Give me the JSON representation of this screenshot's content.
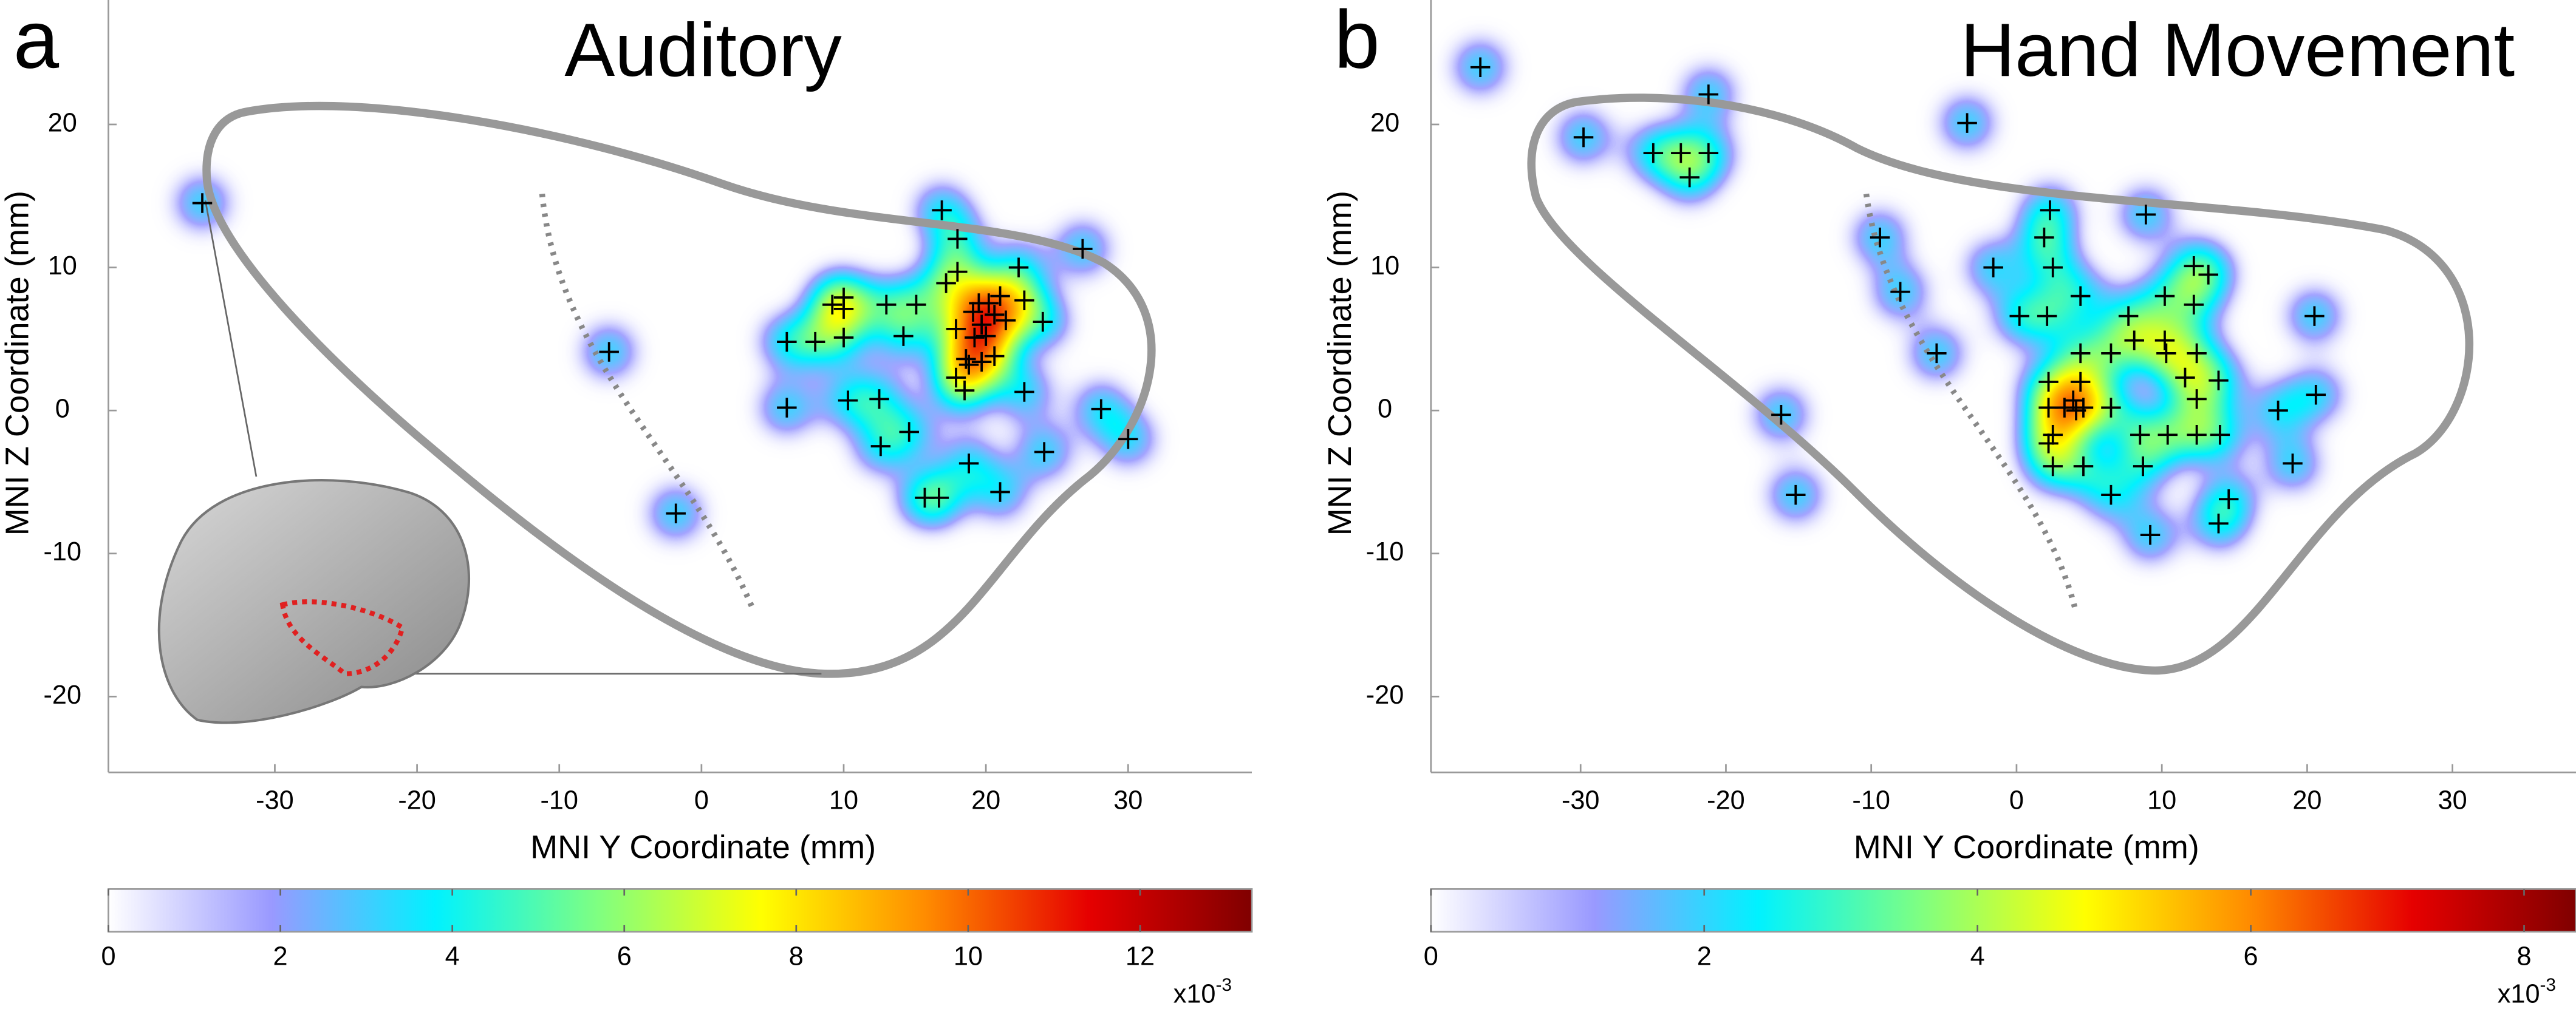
{
  "chart_data": [
    {
      "type": "scatter",
      "panel_label": "a",
      "title": "Auditory",
      "x_label": "MNI Y Coordinate (mm)",
      "y_label": "MNI Z Coordinate (mm)",
      "color": "#000000",
      "x": [
        -35.1,
        -6.5,
        -1.8,
        16.9,
        6.0,
        8.0,
        6.0,
        9.2,
        10.0,
        10.0,
        10.0,
        10.3,
        12.5,
        12.6,
        13.0,
        14.2,
        14.6,
        15.1,
        15.7,
        16.7,
        17.2,
        18.0,
        18.0,
        17.9,
        17.9,
        18.5,
        18.6,
        18.8,
        19.1,
        19.5,
        19.7,
        20.0,
        20.2,
        20.6,
        21.0,
        19.2,
        18.8,
        19.7,
        20.6,
        21.4,
        22.3,
        22.7,
        22.7,
        21.0,
        24.0,
        24.1,
        26.8,
        28.1,
        30.0
      ],
      "y": [
        14.5,
        4.1,
        -7.2,
        14.0,
        4.8,
        4.8,
        0.2,
        7.4,
        7.9,
        7.1,
        5.1,
        0.7,
        0.8,
        -2.5,
        7.4,
        5.2,
        -1.5,
        7.4,
        -6.1,
        -6.1,
        8.9,
        12.0,
        9.7,
        5.7,
        2.3,
        1.4,
        3.6,
        -3.7,
        6.9,
        7.5,
        6.0,
        5.2,
        7.5,
        6.7,
        8.0,
        5.1,
        3.2,
        3.4,
        3.8,
        6.3,
        10.0,
        7.7,
        1.3,
        -5.7,
        6.2,
        -2.9,
        11.3,
        0.1,
        -2.0
      ],
      "xlim": [
        -41.7,
        38.7
      ],
      "ylim": [
        -25.3,
        28.7
      ],
      "xticks": [
        -30,
        -20,
        -10,
        0,
        10,
        20,
        30
      ],
      "yticks": [
        -20,
        -10,
        0,
        10,
        20
      ],
      "colorbar": {
        "lim": [
          0,
          13.3
        ],
        "ticks": [
          0,
          2,
          4,
          6,
          8,
          10,
          12
        ],
        "multiplier": {
          "base": "x10",
          "exponent": "-3"
        }
      }
    },
    {
      "type": "scatter",
      "panel_label": "b",
      "title": "Hand Movement",
      "x_label": "MNI Y Coordinate (mm)",
      "y_label": "MNI Z Coordinate (mm)",
      "color": "#000000",
      "x": [
        -36.9,
        -29.8,
        -25.0,
        -23.1,
        -22.5,
        -21.2,
        -21.2,
        -3.4,
        -9.4,
        -8.0,
        -5.5,
        -16.2,
        -15.2,
        -1.6,
        0.2,
        1.9,
        2.3,
        2.1,
        2.5,
        4.4,
        4.4,
        2.2,
        2.2,
        2.5,
        2.2,
        2.5,
        3.3,
        3.9,
        4.1,
        4.6,
        4.4,
        4.6,
        6.5,
        6.5,
        6.5,
        7.7,
        8.1,
        8.5,
        8.7,
        8.9,
        9.2,
        10.2,
        10.2,
        10.3,
        10.4,
        11.6,
        12.2,
        12.2,
        12.4,
        12.4,
        12.4,
        13.9,
        14.0,
        13.9,
        14.6,
        13.2,
        18.0,
        19.0,
        20.5,
        20.6
      ],
      "y": [
        24.0,
        19.1,
        18.0,
        18.0,
        16.3,
        22.1,
        18.0,
        20.1,
        12.1,
        8.3,
        4.0,
        -0.3,
        -5.9,
        10.0,
        6.6,
        12.1,
        14.0,
        6.6,
        10.0,
        8.0,
        4.0,
        2.0,
        0.2,
        -1.7,
        -2.3,
        -3.9,
        0.2,
        0.7,
        0.0,
        0.2,
        2.0,
        -3.9,
        4.0,
        0.2,
        -5.9,
        6.6,
        4.9,
        -1.7,
        -3.9,
        13.7,
        -8.7,
        8.0,
        4.9,
        4.0,
        -1.7,
        2.3,
        10.1,
        7.4,
        4.0,
        0.8,
        -1.7,
        2.1,
        -1.7,
        -7.9,
        -6.2,
        9.5,
        0.0,
        -3.7,
        6.6,
        1.1
      ],
      "xlim": [
        -40.3,
        38.5
      ],
      "ylim": [
        -25.3,
        28.7
      ],
      "xticks": [
        -30,
        -20,
        -10,
        0,
        10,
        20,
        30
      ],
      "yticks": [
        -20,
        -10,
        0,
        10,
        20
      ],
      "colorbar": {
        "lim": [
          0,
          8.38
        ],
        "ticks": [
          0,
          2,
          4,
          6,
          8
        ],
        "multiplier": {
          "base": "x10",
          "exponent": "-3"
        }
      }
    }
  ]
}
